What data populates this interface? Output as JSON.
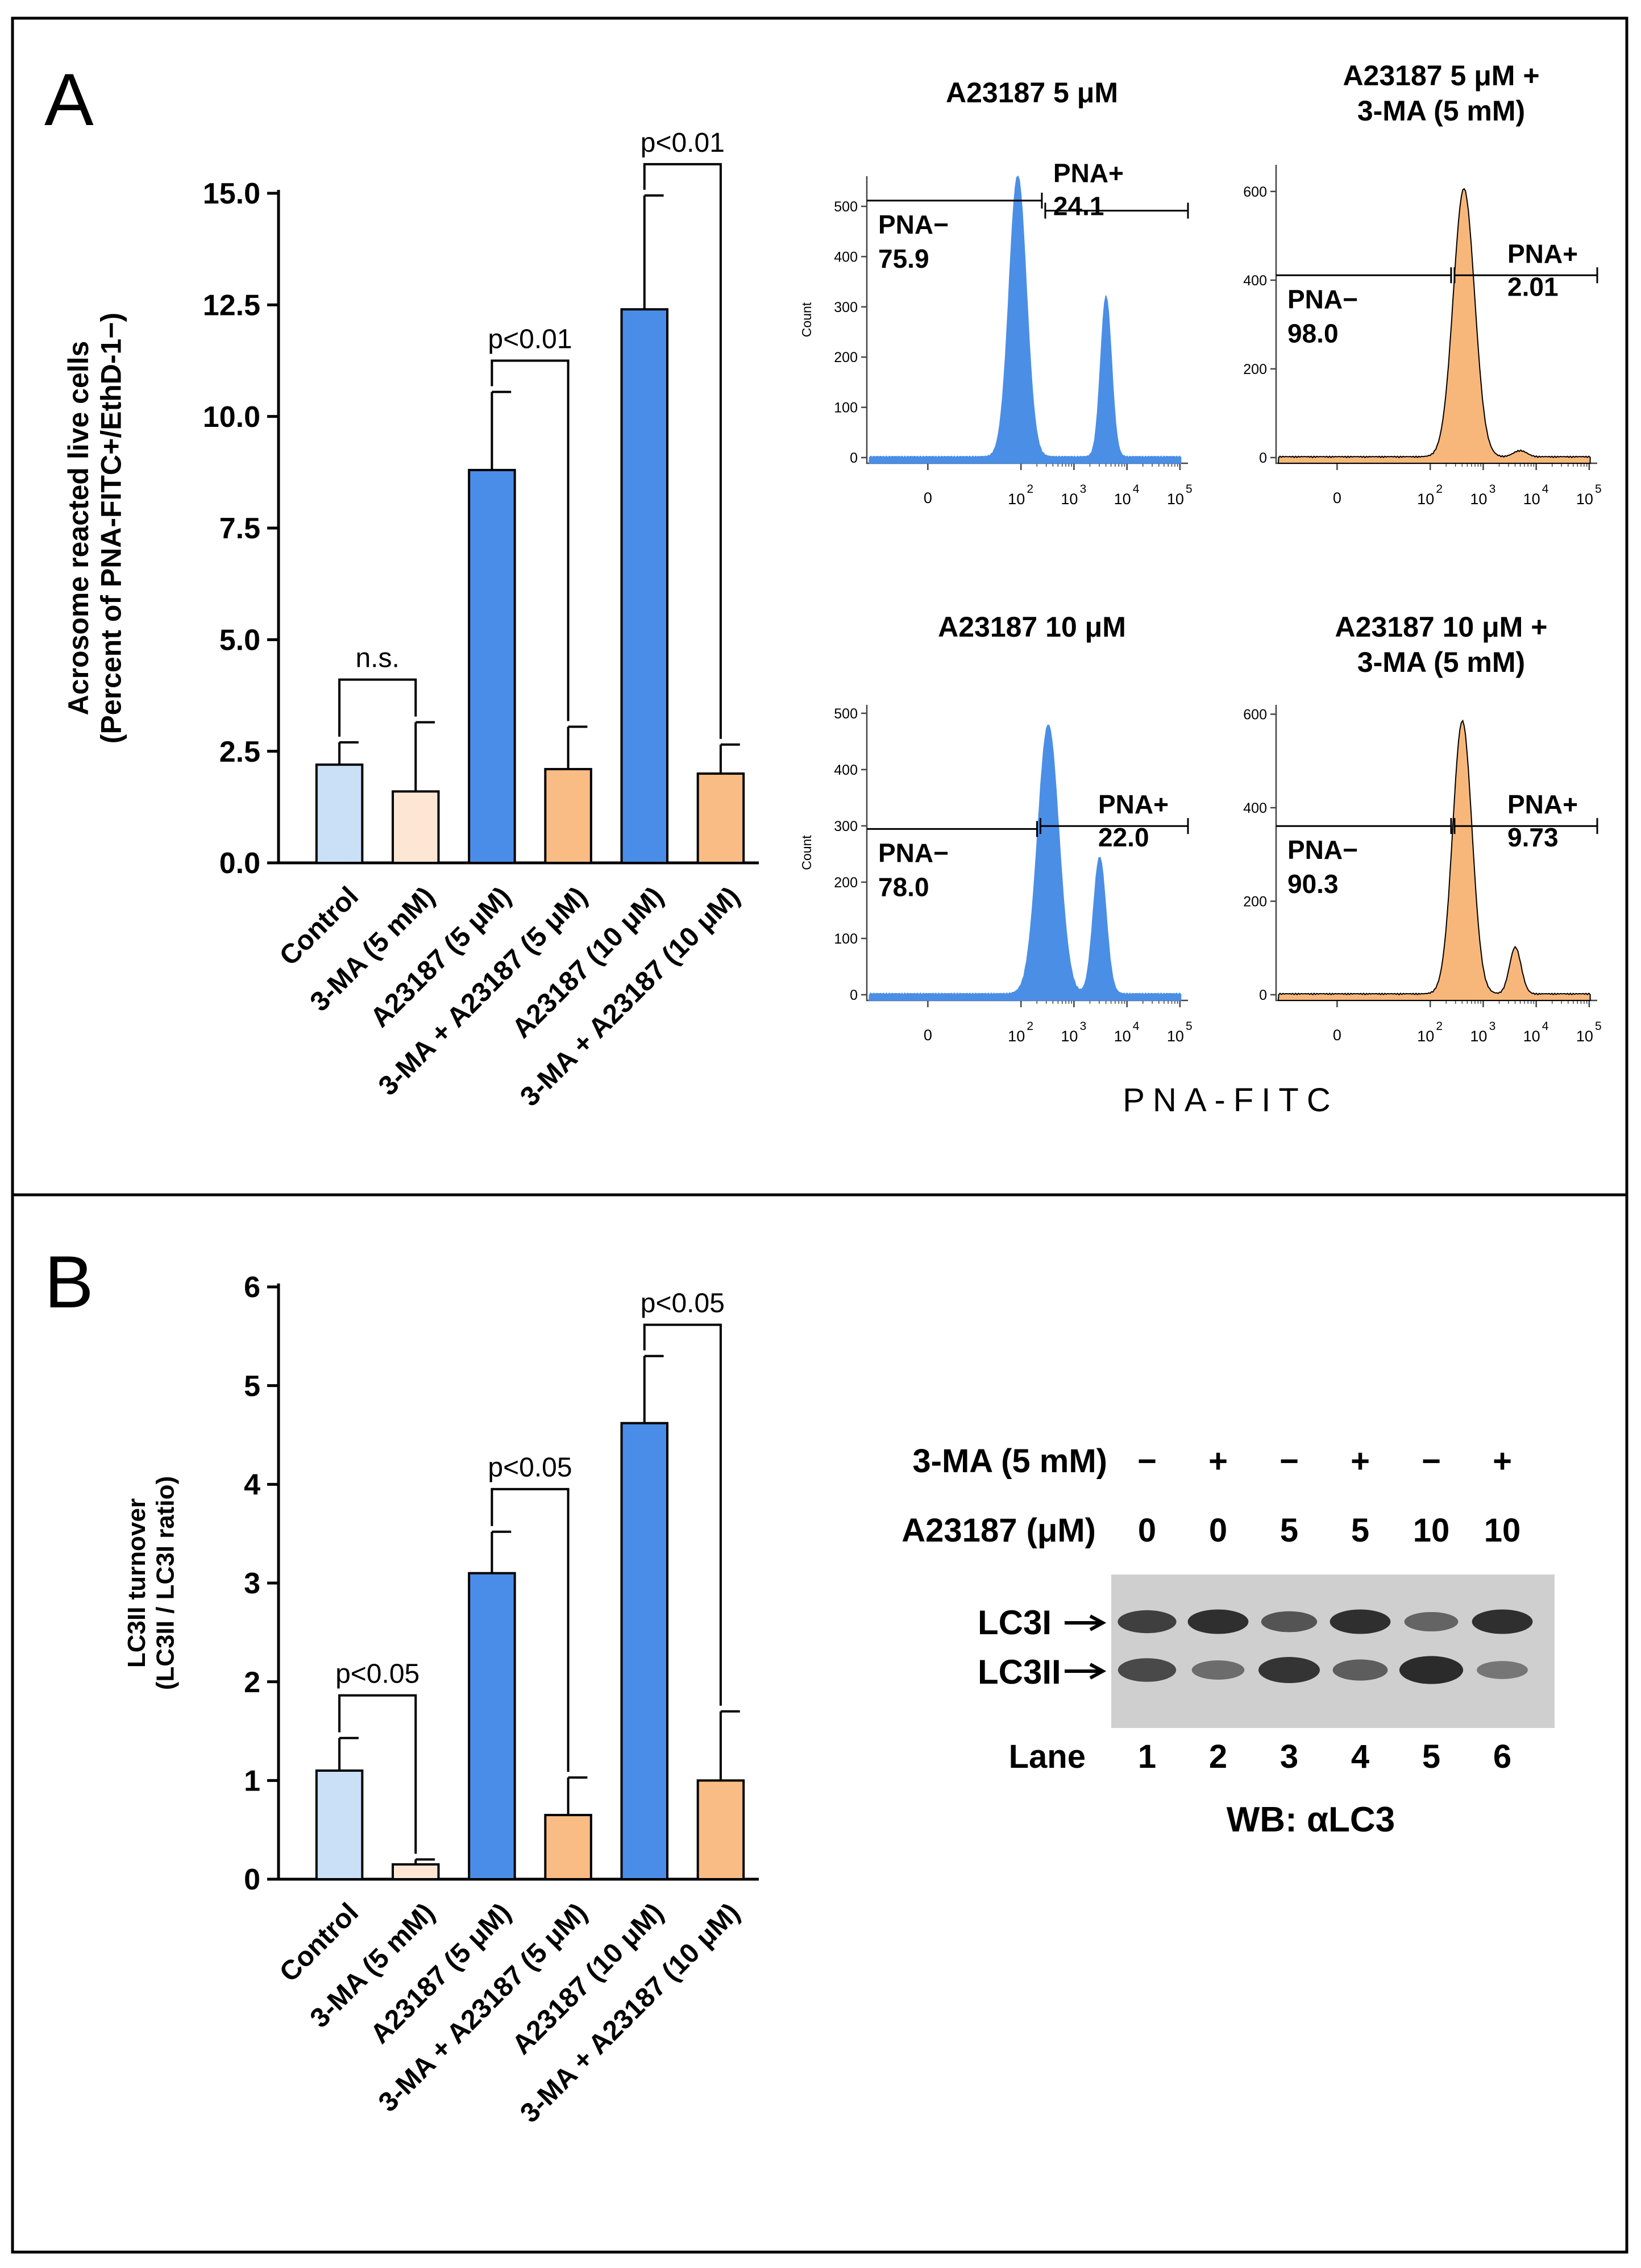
{
  "colors": {
    "light_blue": "#c9e0f7",
    "peach": "#fde6d3",
    "blue": "#4a8de8",
    "orange": "#f9bc84",
    "blue_hist": "#4b8ee6",
    "orange_hist": "#f8b77a",
    "blot_bg": "#cfcfcf"
  },
  "panel_a": {
    "letter": "A",
    "y_tick_labels": [
      "0.0",
      "2.5",
      "5.0",
      "7.5",
      "10.0",
      "12.5",
      "15.0"
    ],
    "x_axis_title": "PNA-FITC",
    "hist_ticks": [
      "0",
      "10",
      "2",
      "10",
      "3",
      "10",
      "4",
      "10",
      "5"
    ],
    "histograms": [
      {
        "title": "A23187 5 μM",
        "title2": "",
        "neg_label": "PNA−",
        "neg_value": "75.9",
        "pos_label": "PNA+",
        "pos_value": "24.1",
        "y_axis_label": "Count",
        "yticks": [
          "0",
          "100",
          "200",
          "300",
          "400",
          "500"
        ],
        "ymax": 560
      },
      {
        "title": "A23187 5 μM +",
        "title2": "3-MA (5 mM)",
        "neg_label": "PNA−",
        "neg_value": "98.0",
        "pos_label": "PNA+",
        "pos_value": "2.01",
        "y_axis_label": "",
        "yticks": [
          "0",
          "200",
          "400",
          "600"
        ],
        "ymax": 660
      },
      {
        "title": "A23187 10 μM",
        "title2": "",
        "neg_label": "PNA−",
        "neg_value": "78.0",
        "pos_label": "PNA+",
        "pos_value": "22.0",
        "y_axis_label": "Count",
        "yticks": [
          "0",
          "100",
          "200",
          "300",
          "400",
          "500"
        ],
        "ymax": 515
      },
      {
        "title": "A23187 10 μM +",
        "title2": "3-MA (5 mM)",
        "neg_label": "PNA−",
        "neg_value": "90.3",
        "pos_label": "PNA+",
        "pos_value": "9.73",
        "y_axis_label": "",
        "yticks": [
          "0",
          "200",
          "400",
          "600"
        ],
        "ymax": 620
      }
    ]
  },
  "panel_b": {
    "letter": "B",
    "y_tick_labels": [
      "0",
      "1",
      "2",
      "3",
      "4",
      "5",
      "6"
    ],
    "blot": {
      "row1_label": "3-MA (5 mM)",
      "row1_values": [
        "−",
        "+",
        "−",
        "+",
        "−",
        "+"
      ],
      "row2_label": "A23187 (μM)",
      "row2_values": [
        "0",
        "0",
        "5",
        "5",
        "10",
        "10"
      ],
      "band_labels": [
        "LC3I",
        "LC3II"
      ],
      "lane_label": "Lane",
      "lanes": [
        "1",
        "2",
        "3",
        "4",
        "5",
        "6"
      ],
      "footer": "WB: αLC3"
    }
  },
  "chart_data": [
    {
      "type": "bar",
      "title": "",
      "ylabel": "Acrosome reacted live cells",
      "ylabel2": "(Percent of PNA-FITC+/EthD-1−)",
      "xlabel": "",
      "ylim": [
        0,
        15
      ],
      "categories": [
        "Control",
        "3-MA (5 mM)",
        "A23187 (5 μM)",
        "3-MA + A23187 (5 μM)",
        "A23187 (10 μM)",
        "3-MA + A23187 (10 μM)"
      ],
      "values": [
        2.2,
        1.6,
        8.8,
        2.1,
        12.4,
        2.0
      ],
      "errors": [
        0.5,
        1.55,
        1.75,
        0.95,
        2.55,
        0.65
      ],
      "annotations": [
        {
          "pair": [
            0,
            1
          ],
          "text": "n.s."
        },
        {
          "pair": [
            2,
            3
          ],
          "text": "p<0.01"
        },
        {
          "pair": [
            4,
            5
          ],
          "text": "p<0.01"
        }
      ]
    },
    {
      "type": "bar",
      "title": "",
      "ylabel": "LC3II turnover",
      "ylabel2": "(LC3II / LC3I ratio)",
      "xlabel": "",
      "ylim": [
        0,
        6
      ],
      "categories": [
        "Control",
        "3-MA (5 mM)",
        "A23187 (5 μM)",
        "3-MA + A23187 (5 μM)",
        "A23187 (10 μM)",
        "3-MA + A23187 (10 μM)"
      ],
      "values": [
        1.1,
        0.15,
        3.1,
        0.65,
        4.62,
        1.0
      ],
      "errors": [
        0.33,
        0.05,
        0.42,
        0.38,
        0.68,
        0.7
      ],
      "annotations": [
        {
          "pair": [
            0,
            1
          ],
          "text": "p<0.05"
        },
        {
          "pair": [
            2,
            3
          ],
          "text": "p<0.05"
        },
        {
          "pair": [
            4,
            5
          ],
          "text": "p<0.05"
        }
      ]
    }
  ]
}
